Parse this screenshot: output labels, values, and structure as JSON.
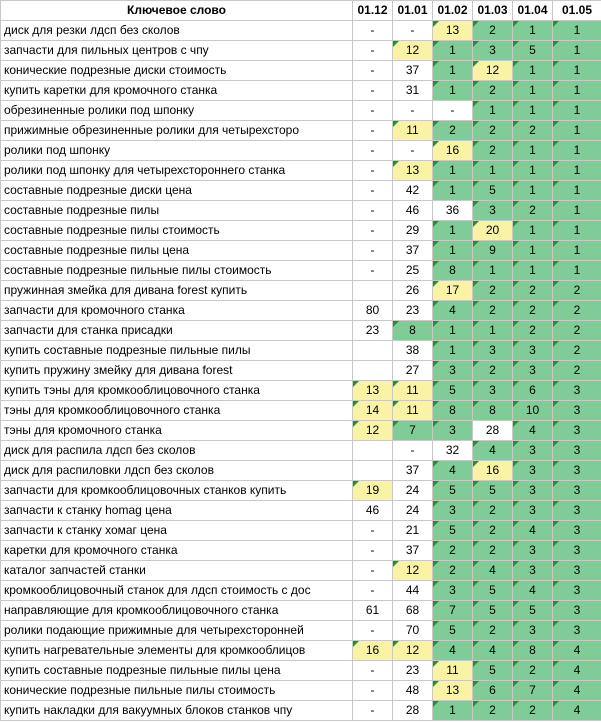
{
  "headers": [
    "Ключевое слово",
    "01.12",
    "01.01",
    "01.02",
    "01.03",
    "01.04",
    "01.05"
  ],
  "colors": {
    "green": "#7fcc96",
    "yellow": "#fbf3a4",
    "white": "#ffffff",
    "marker": "#2e8b3a"
  },
  "rows": [
    {
      "kw": "диск для резки лдсп без сколов",
      "v": [
        "-",
        "-",
        "13",
        "2",
        "1",
        "1"
      ],
      "c": [
        "w",
        "w",
        "y",
        "g",
        "g",
        "g"
      ]
    },
    {
      "kw": "запчасти для пильных центров с чпу",
      "v": [
        "-",
        "12",
        "1",
        "3",
        "5",
        "1"
      ],
      "c": [
        "w",
        "y",
        "g",
        "g",
        "g",
        "g"
      ]
    },
    {
      "kw": "конические подрезные диски стоимость",
      "v": [
        "-",
        "37",
        "1",
        "12",
        "1",
        "1"
      ],
      "c": [
        "w",
        "w",
        "g",
        "y",
        "g",
        "g"
      ]
    },
    {
      "kw": "купить каретки для кромочного станка",
      "v": [
        "-",
        "31",
        "1",
        "2",
        "1",
        "1"
      ],
      "c": [
        "w",
        "w",
        "g",
        "g",
        "g",
        "g"
      ]
    },
    {
      "kw": "обрезиненные ролики под шпонку",
      "v": [
        "-",
        "-",
        "-",
        "1",
        "1",
        "1"
      ],
      "c": [
        "w",
        "w",
        "w",
        "g",
        "g",
        "g"
      ]
    },
    {
      "kw": "прижимные обрезиненные ролики для четырехсторо",
      "v": [
        "-",
        "11",
        "2",
        "2",
        "2",
        "1"
      ],
      "c": [
        "w",
        "y",
        "g",
        "g",
        "g",
        "g"
      ]
    },
    {
      "kw": "ролики под шпонку",
      "v": [
        "-",
        "-",
        "16",
        "2",
        "1",
        "1"
      ],
      "c": [
        "w",
        "w",
        "y",
        "g",
        "g",
        "g"
      ]
    },
    {
      "kw": "ролики под шпонку для четырехстороннего станка",
      "v": [
        "-",
        "13",
        "1",
        "1",
        "1",
        "1"
      ],
      "c": [
        "w",
        "y",
        "g",
        "g",
        "g",
        "g"
      ]
    },
    {
      "kw": "составные подрезные диски цена",
      "v": [
        "-",
        "42",
        "1",
        "5",
        "1",
        "1"
      ],
      "c": [
        "w",
        "w",
        "g",
        "g",
        "g",
        "g"
      ]
    },
    {
      "kw": "составные подрезные пилы",
      "v": [
        "-",
        "46",
        "36",
        "3",
        "2",
        "1"
      ],
      "c": [
        "w",
        "w",
        "w",
        "g",
        "g",
        "g"
      ]
    },
    {
      "kw": "составные подрезные пилы стоимость",
      "v": [
        "-",
        "29",
        "1",
        "20",
        "1",
        "1"
      ],
      "c": [
        "w",
        "w",
        "g",
        "y",
        "g",
        "g"
      ]
    },
    {
      "kw": "составные подрезные пилы цена",
      "v": [
        "-",
        "37",
        "1",
        "9",
        "1",
        "1"
      ],
      "c": [
        "w",
        "w",
        "g",
        "g",
        "g",
        "g"
      ]
    },
    {
      "kw": "составные подрезные пильные пилы стоимость",
      "v": [
        "-",
        "25",
        "8",
        "1",
        "1",
        "1"
      ],
      "c": [
        "w",
        "w",
        "g",
        "g",
        "g",
        "g"
      ]
    },
    {
      "kw": "пружинная змейка для дивана forest купить",
      "v": [
        "",
        "26",
        "17",
        "2",
        "2",
        "2"
      ],
      "c": [
        "w",
        "w",
        "y",
        "g",
        "g",
        "g"
      ]
    },
    {
      "kw": "запчасти для кромочного станка",
      "v": [
        "80",
        "23",
        "4",
        "2",
        "2",
        "2"
      ],
      "c": [
        "w",
        "w",
        "g",
        "g",
        "g",
        "g"
      ]
    },
    {
      "kw": "запчасти для станка присадки",
      "v": [
        "23",
        "8",
        "1",
        "1",
        "2",
        "2"
      ],
      "c": [
        "w",
        "g",
        "g",
        "g",
        "g",
        "g"
      ]
    },
    {
      "kw": "купить составные подрезные пильные пилы",
      "v": [
        "",
        "38",
        "1",
        "3",
        "3",
        "2"
      ],
      "c": [
        "w",
        "w",
        "g",
        "g",
        "g",
        "g"
      ]
    },
    {
      "kw": "купить пружину змейку для дивана forest",
      "v": [
        "",
        "27",
        "3",
        "2",
        "3",
        "2"
      ],
      "c": [
        "w",
        "w",
        "g",
        "g",
        "g",
        "g"
      ]
    },
    {
      "kw": "купить тэны для кромкооблицовочного станка",
      "v": [
        "13",
        "11",
        "5",
        "3",
        "6",
        "3"
      ],
      "c": [
        "y",
        "y",
        "g",
        "g",
        "g",
        "g"
      ]
    },
    {
      "kw": "тэны для кромкооблицовочного станка",
      "v": [
        "14",
        "11",
        "8",
        "8",
        "10",
        "3"
      ],
      "c": [
        "y",
        "y",
        "g",
        "g",
        "g",
        "g"
      ]
    },
    {
      "kw": "тэны для кромочного станка",
      "v": [
        "12",
        "7",
        "3",
        "28",
        "4",
        "3"
      ],
      "c": [
        "y",
        "g",
        "g",
        "w",
        "g",
        "g"
      ]
    },
    {
      "kw": "диск для распила лдсп без сколов",
      "v": [
        "",
        "-",
        "32",
        "4",
        "3",
        "3"
      ],
      "c": [
        "w",
        "w",
        "w",
        "g",
        "g",
        "g"
      ]
    },
    {
      "kw": "диск для распиловки лдсп без сколов",
      "v": [
        "",
        "37",
        "4",
        "16",
        "3",
        "3"
      ],
      "c": [
        "w",
        "w",
        "g",
        "y",
        "g",
        "g"
      ]
    },
    {
      "kw": "запчасти для кромкооблицовочных станков купить",
      "v": [
        "19",
        "24",
        "5",
        "5",
        "3",
        "3"
      ],
      "c": [
        "y",
        "w",
        "g",
        "g",
        "g",
        "g"
      ]
    },
    {
      "kw": "запчасти к станку homag цена",
      "v": [
        "46",
        "24",
        "3",
        "2",
        "3",
        "3"
      ],
      "c": [
        "w",
        "w",
        "g",
        "g",
        "g",
        "g"
      ]
    },
    {
      "kw": "запчасти к станку хомаг цена",
      "v": [
        "-",
        "21",
        "5",
        "2",
        "4",
        "3"
      ],
      "c": [
        "w",
        "w",
        "g",
        "g",
        "g",
        "g"
      ]
    },
    {
      "kw": "каретки для кромочного станка",
      "v": [
        "-",
        "37",
        "2",
        "2",
        "3",
        "3"
      ],
      "c": [
        "w",
        "w",
        "g",
        "g",
        "g",
        "g"
      ]
    },
    {
      "kw": "каталог запчастей станки",
      "v": [
        "-",
        "12",
        "2",
        "4",
        "3",
        "3"
      ],
      "c": [
        "w",
        "y",
        "g",
        "g",
        "g",
        "g"
      ]
    },
    {
      "kw": "кромкооблицовочный станок для лдсп стоимость с дос",
      "v": [
        "-",
        "44",
        "3",
        "5",
        "4",
        "3"
      ],
      "c": [
        "w",
        "w",
        "g",
        "g",
        "g",
        "g"
      ]
    },
    {
      "kw": "направляющие для кромкооблицовочного станка",
      "v": [
        "61",
        "68",
        "7",
        "5",
        "5",
        "3"
      ],
      "c": [
        "w",
        "w",
        "g",
        "g",
        "g",
        "g"
      ]
    },
    {
      "kw": "ролики подающие прижимные для четырехсторонней",
      "v": [
        "-",
        "70",
        "5",
        "2",
        "3",
        "3"
      ],
      "c": [
        "w",
        "w",
        "g",
        "g",
        "g",
        "g"
      ]
    },
    {
      "kw": "купить нагревательные элементы для кромкооблицов",
      "v": [
        "16",
        "12",
        "4",
        "4",
        "8",
        "4"
      ],
      "c": [
        "y",
        "y",
        "g",
        "g",
        "g",
        "g"
      ]
    },
    {
      "kw": "купить составные подрезные пильные пилы цена",
      "v": [
        "-",
        "23",
        "11",
        "5",
        "2",
        "4"
      ],
      "c": [
        "w",
        "w",
        "y",
        "g",
        "g",
        "g"
      ]
    },
    {
      "kw": "конические подрезные пильные пилы стоимость",
      "v": [
        "-",
        "48",
        "13",
        "6",
        "7",
        "4"
      ],
      "c": [
        "w",
        "w",
        "y",
        "g",
        "g",
        "g"
      ]
    },
    {
      "kw": "купить накладки для вакуумных блоков станков чпу",
      "v": [
        "-",
        "28",
        "1",
        "2",
        "2",
        "4"
      ],
      "c": [
        "w",
        "w",
        "g",
        "g",
        "g",
        "g"
      ]
    }
  ]
}
